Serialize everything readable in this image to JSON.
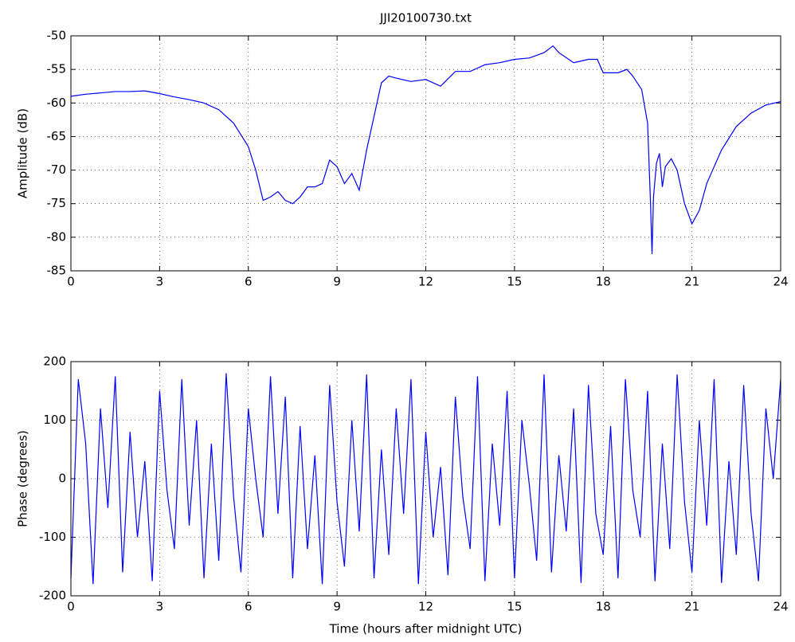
{
  "chart_data": [
    {
      "type": "line",
      "title": "JJI20100730.txt",
      "ylabel": "Amplitude (dB)",
      "color": "#0000ff",
      "grid": true,
      "x": [
        0,
        0.5,
        1,
        1.5,
        2,
        2.5,
        3,
        3.5,
        4,
        4.5,
        5,
        5.5,
        6,
        6.25,
        6.5,
        6.75,
        7,
        7.25,
        7.5,
        7.75,
        8,
        8.25,
        8.5,
        8.75,
        9,
        9.25,
        9.5,
        9.75,
        10,
        10.25,
        10.5,
        10.75,
        11,
        11.5,
        12,
        12.5,
        13,
        13.5,
        14,
        14.5,
        15,
        15.5,
        16,
        16.3,
        16.5,
        17,
        17.5,
        17.8,
        18,
        18.5,
        18.8,
        19,
        19.3,
        19.5,
        19.6,
        19.65,
        19.7,
        19.8,
        19.9,
        20,
        20.1,
        20.3,
        20.5,
        20.75,
        21,
        21.25,
        21.5,
        22,
        22.5,
        23,
        23.5,
        24
      ],
      "values": [
        -59,
        -58.7,
        -58.5,
        -58.3,
        -58.3,
        -58.2,
        -58.6,
        -59.1,
        -59.5,
        -60,
        -61,
        -63,
        -66.5,
        -70,
        -74.5,
        -74,
        -73.2,
        -74.5,
        -75,
        -74,
        -72.5,
        -72.5,
        -72,
        -68.5,
        -69.5,
        -72,
        -70.5,
        -73,
        -67,
        -62,
        -57,
        -56,
        -56.3,
        -56.8,
        -56.5,
        -57.5,
        -55.3,
        -55.3,
        -54.3,
        -54,
        -53.5,
        -53.3,
        -52.5,
        -51.5,
        -52.5,
        -54,
        -53.5,
        -53.5,
        -55.5,
        -55.5,
        -55,
        -56,
        -58,
        -63,
        -75,
        -82.5,
        -74,
        -69,
        -67.5,
        -72.5,
        -69.5,
        -68.3,
        -70,
        -75,
        -78,
        -76,
        -72,
        -67,
        -63.5,
        -61.5,
        -60.3,
        -59.8
      ],
      "xlim": [
        0,
        24
      ],
      "xticks": [
        0,
        3,
        6,
        9,
        12,
        15,
        18,
        21,
        24
      ],
      "ylim": [
        -85,
        -50
      ],
      "yticks": [
        -85,
        -80,
        -75,
        -70,
        -65,
        -60,
        -55,
        -50
      ]
    },
    {
      "type": "line",
      "ylabel": "Phase (degrees)",
      "xlabel": "Time (hours after midnight UTC)",
      "color": "#0000ff",
      "grid": true,
      "x": [
        0,
        0.25,
        0.5,
        0.75,
        1,
        1.25,
        1.5,
        1.75,
        2,
        2.25,
        2.5,
        2.75,
        3,
        3.25,
        3.5,
        3.75,
        4,
        4.25,
        4.5,
        4.75,
        5,
        5.25,
        5.5,
        5.75,
        6,
        6.25,
        6.5,
        6.75,
        7,
        7.25,
        7.5,
        7.75,
        8,
        8.25,
        8.5,
        8.75,
        9,
        9.25,
        9.5,
        9.75,
        10,
        10.25,
        10.5,
        10.75,
        11,
        11.25,
        11.5,
        11.75,
        12,
        12.25,
        12.5,
        12.75,
        13,
        13.25,
        13.5,
        13.75,
        14,
        14.25,
        14.5,
        14.75,
        15,
        15.25,
        15.5,
        15.75,
        16,
        16.25,
        16.5,
        16.75,
        17,
        17.25,
        17.5,
        17.75,
        18,
        18.25,
        18.5,
        18.75,
        19,
        19.25,
        19.5,
        19.75,
        20,
        20.25,
        20.5,
        20.75,
        21,
        21.25,
        21.5,
        21.75,
        22,
        22.25,
        22.5,
        22.75,
        23,
        23.25,
        23.5,
        23.75,
        24
      ],
      "values": [
        -170,
        170,
        60,
        -180,
        120,
        -50,
        175,
        -160,
        80,
        -100,
        30,
        -175,
        150,
        -20,
        -120,
        170,
        -80,
        100,
        -170,
        60,
        -140,
        180,
        -30,
        -160,
        120,
        0,
        -100,
        175,
        -60,
        140,
        -170,
        90,
        -120,
        40,
        -180,
        160,
        -40,
        -150,
        100,
        -90,
        178,
        -170,
        50,
        -130,
        120,
        -60,
        170,
        -180,
        80,
        -100,
        20,
        -165,
        140,
        -30,
        -120,
        175,
        -175,
        60,
        -80,
        150,
        -170,
        100,
        -10,
        -140,
        178,
        -160,
        40,
        -90,
        120,
        -178,
        160,
        -60,
        -130,
        90,
        -170,
        170,
        -20,
        -100,
        150,
        -175,
        60,
        -120,
        178,
        -40,
        -160,
        100,
        -80,
        170,
        -178,
        30,
        -130,
        160,
        -60,
        -175,
        120,
        0,
        170
      ],
      "xlim": [
        0,
        24
      ],
      "xticks": [
        0,
        3,
        6,
        9,
        12,
        15,
        18,
        21,
        24
      ],
      "ylim": [
        -200,
        200
      ],
      "yticks": [
        -200,
        -100,
        0,
        100,
        200
      ]
    }
  ]
}
